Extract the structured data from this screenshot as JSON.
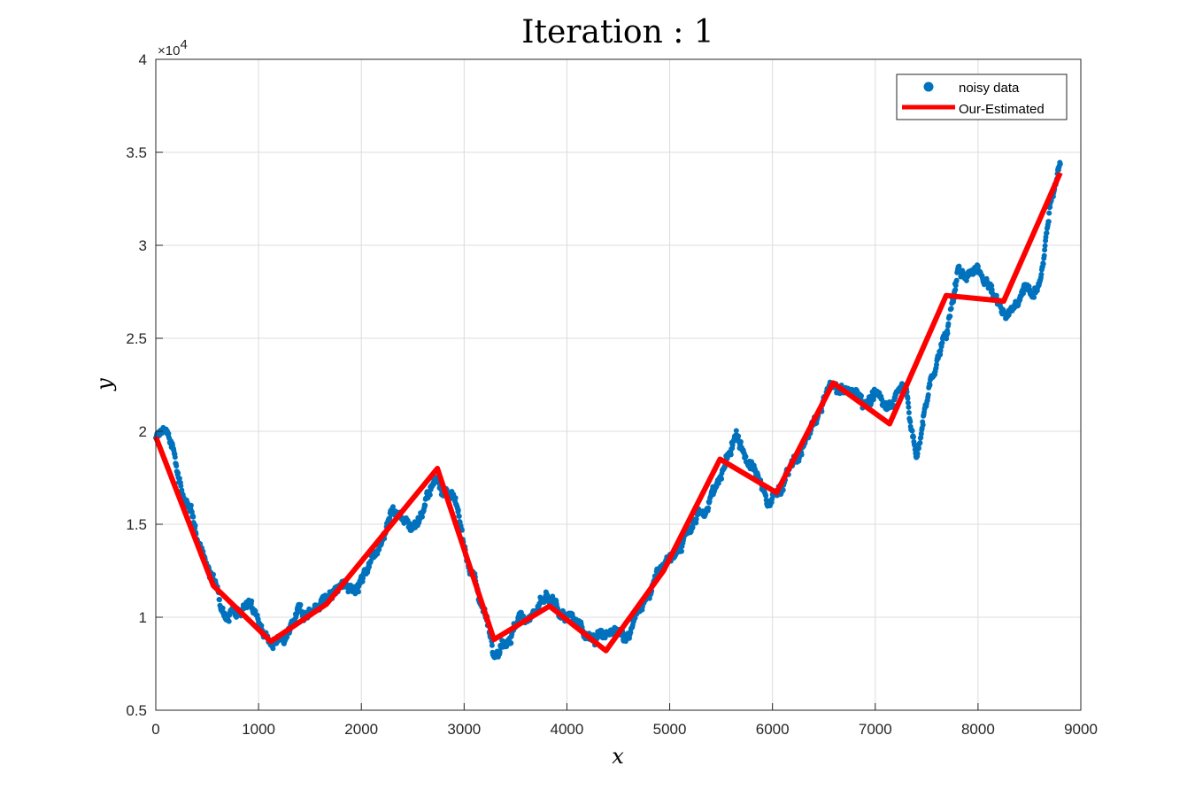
{
  "chart_data": {
    "type": "scatter",
    "title": "Iteration : 1",
    "xlabel": "x",
    "ylabel": "y",
    "xlim": [
      0,
      9000
    ],
    "ylim": [
      0.5,
      4
    ],
    "y_exponent_label": "×10",
    "y_exponent_power": "4",
    "x_ticks": [
      "0",
      "1000",
      "2000",
      "3000",
      "4000",
      "5000",
      "6000",
      "7000",
      "8000",
      "9000"
    ],
    "y_ticks": [
      "0.5",
      "1",
      "1.5",
      "2",
      "2.5",
      "3",
      "3.5",
      "4"
    ],
    "grid": true,
    "legend": {
      "placement": "top-right",
      "entries": [
        "noisy data",
        "Our-Estimated"
      ]
    },
    "colors": {
      "noisy": "#0072BD",
      "estimated": "#FF0000"
    },
    "noisy_trend": {
      "x": [
        0,
        100,
        300,
        550,
        700,
        900,
        1100,
        1250,
        1400,
        1700,
        2000,
        2300,
        2500,
        2750,
        2900,
        3050,
        3300,
        3500,
        3800,
        4050,
        4350,
        4550,
        4800,
        5000,
        5200,
        5500,
        5650,
        5800,
        5950,
        6050,
        6300,
        6550,
        6800,
        7100,
        7300,
        7400,
        7550,
        7700,
        7800,
        8000,
        8250,
        8400,
        8600,
        8700,
        8800
      ],
      "y": [
        1.95,
        2.02,
        1.6,
        1.2,
        1.05,
        1.1,
        0.87,
        0.82,
        1.0,
        1.12,
        1.2,
        1.6,
        1.5,
        1.75,
        1.6,
        1.3,
        0.85,
        0.98,
        1.07,
        0.95,
        0.9,
        0.88,
        1.12,
        1.35,
        1.45,
        1.75,
        2.0,
        1.8,
        1.6,
        1.68,
        1.9,
        2.22,
        2.2,
        2.15,
        2.25,
        1.85,
        2.3,
        2.55,
        2.82,
        2.9,
        2.65,
        2.72,
        2.85,
        3.25,
        3.45
      ]
    },
    "estimated_series": {
      "name": "Our-Estimated",
      "x": [
        0,
        560,
        1120,
        1660,
        2740,
        3290,
        3830,
        4380,
        4940,
        5490,
        6040,
        6590,
        7140,
        7690,
        8250,
        8800
      ],
      "y": [
        1.97,
        1.17,
        0.87,
        1.07,
        1.8,
        0.88,
        1.06,
        0.82,
        1.25,
        1.85,
        1.67,
        2.26,
        2.04,
        2.73,
        2.7,
        3.39
      ]
    }
  }
}
